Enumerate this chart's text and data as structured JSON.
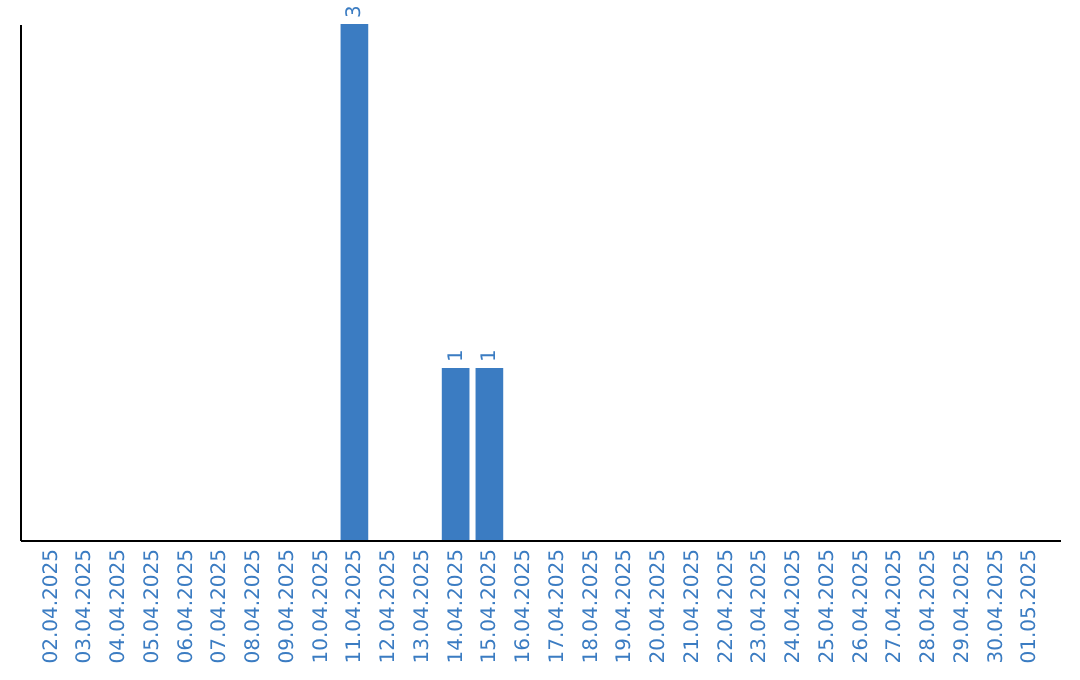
{
  "chart_data": {
    "type": "bar",
    "categories": [
      "02.04.2025",
      "03.04.2025",
      "04.04.2025",
      "05.04.2025",
      "06.04.2025",
      "07.04.2025",
      "08.04.2025",
      "09.04.2025",
      "10.04.2025",
      "11.04.2025",
      "12.04.2025",
      "13.04.2025",
      "14.04.2025",
      "15.04.2025",
      "16.04.2025",
      "17.04.2025",
      "18.04.2025",
      "19.04.2025",
      "20.04.2025",
      "21.04.2025",
      "22.04.2025",
      "23.04.2025",
      "24.04.2025",
      "25.04.2025",
      "26.04.2025",
      "27.04.2025",
      "28.04.2025",
      "29.04.2025",
      "30.04.2025",
      "01.05.2025"
    ],
    "values": [
      0,
      0,
      0,
      0,
      0,
      0,
      0,
      0,
      0,
      3,
      0,
      0,
      1,
      1,
      0,
      0,
      0,
      0,
      0,
      0,
      0,
      0,
      0,
      0,
      0,
      0,
      0,
      0,
      0,
      0
    ],
    "value_labels": [
      null,
      null,
      null,
      null,
      null,
      null,
      null,
      null,
      null,
      "3",
      null,
      null,
      "1",
      "1",
      null,
      null,
      null,
      null,
      null,
      null,
      null,
      null,
      null,
      null,
      null,
      null,
      null,
      null,
      null,
      null
    ],
    "color": "#3b7cc2",
    "tick_labels": "x"
  }
}
